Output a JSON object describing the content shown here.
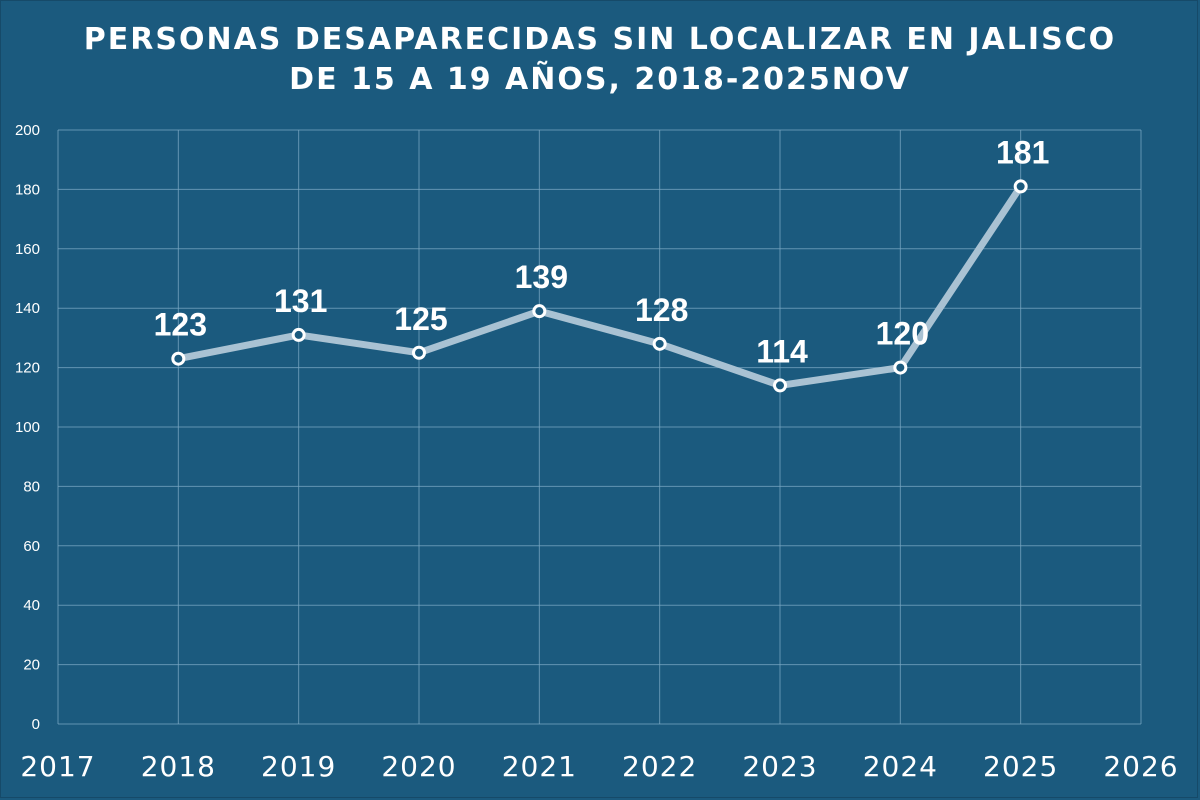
{
  "colors": {
    "background": "#1b5a7e",
    "line": "#a9c2d3",
    "marker_fill": "#1b5a7e",
    "marker_stroke": "#ffffff",
    "grid": "#7aa8c4",
    "text": "#ffffff"
  },
  "chart_data": {
    "type": "line",
    "title": "PERSONAS DESAPARECIDAS SIN LOCALIZAR EN JALISCO",
    "subtitle": "DE 15 A 19 AÑOS, 2018-2025NOV",
    "xlabel": "",
    "ylabel": "",
    "xlim": [
      2017,
      2026
    ],
    "ylim": [
      0,
      200
    ],
    "x_ticks": [
      2017,
      2018,
      2019,
      2020,
      2021,
      2022,
      2023,
      2024,
      2025,
      2026
    ],
    "y_ticks": [
      0,
      20,
      40,
      60,
      80,
      100,
      120,
      140,
      160,
      180,
      200
    ],
    "grid": true,
    "series": [
      {
        "name": "Personas desaparecidas de 15 a 19 años",
        "x": [
          2018,
          2019,
          2020,
          2021,
          2022,
          2023,
          2024,
          2025
        ],
        "values": [
          123,
          131,
          125,
          139,
          128,
          114,
          120,
          181
        ],
        "labels": [
          "123",
          "131",
          "125",
          "139",
          "128",
          "114",
          "120",
          "181"
        ]
      }
    ]
  }
}
